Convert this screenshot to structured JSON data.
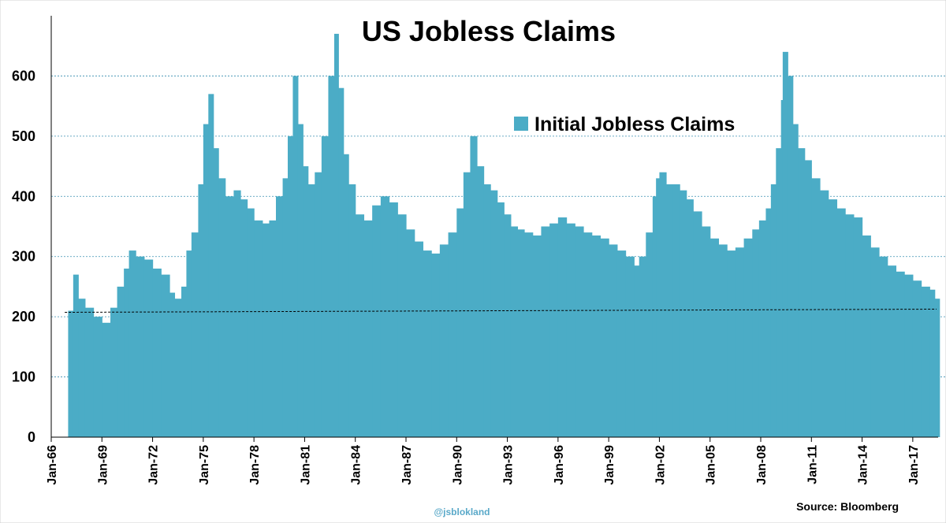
{
  "chart_data": {
    "type": "bar",
    "title": "US Jobless Claims",
    "legend": {
      "label": "Initial Jobless Claims",
      "position": "top-center"
    },
    "color": "#4bacc6",
    "reference_line_value": 210,
    "ylim": [
      0,
      700
    ],
    "yticks": [
      0,
      100,
      200,
      300,
      400,
      500,
      600
    ],
    "xlim": [
      1966.0,
      2018.5
    ],
    "xtick_labels": [
      "Jan-66",
      "Jan-69",
      "Jan-72",
      "Jan-75",
      "Jan-78",
      "Jan-81",
      "Jan-84",
      "Jan-87",
      "Jan-90",
      "Jan-93",
      "Jan-96",
      "Jan-99",
      "Jan-02",
      "Jan-05",
      "Jan-08",
      "Jan-11",
      "Jan-14",
      "Jan-17"
    ],
    "xtick_years": [
      1966,
      1969,
      1972,
      1975,
      1978,
      1981,
      1984,
      1987,
      1990,
      1993,
      1996,
      1999,
      2002,
      2005,
      2008,
      2011,
      2014,
      2017
    ],
    "grid": "horizontal-dashed",
    "source": "Source: Bloomberg",
    "credit": "@jsblokland",
    "series": [
      {
        "x": [
          1967.0,
          1967.3,
          1967.6,
          1968.0,
          1968.5,
          1969.0,
          1969.5,
          1969.9,
          1970.3,
          1970.6,
          1971.0,
          1971.5,
          1972.0,
          1972.5,
          1973.0,
          1973.3,
          1973.7,
          1974.0,
          1974.3,
          1974.7,
          1975.0,
          1975.3,
          1975.6,
          1975.9,
          1976.3,
          1976.8,
          1977.2,
          1977.6,
          1978.0,
          1978.5,
          1978.9,
          1979.3,
          1979.7,
          1980.0,
          1980.3,
          1980.6,
          1980.9,
          1981.2,
          1981.6,
          1982.0,
          1982.4,
          1982.75,
          1983.0,
          1983.3,
          1983.6,
          1984.0,
          1984.5,
          1985.0,
          1985.5,
          1986.0,
          1986.5,
          1987.0,
          1987.5,
          1988.0,
          1988.5,
          1989.0,
          1989.5,
          1990.0,
          1990.4,
          1990.8,
          1991.2,
          1991.6,
          1992.0,
          1992.4,
          1992.8,
          1993.2,
          1993.6,
          1994.0,
          1994.5,
          1995.0,
          1995.5,
          1996.0,
          1996.5,
          1997.0,
          1997.5,
          1998.0,
          1998.5,
          1999.0,
          1999.5,
          2000.0,
          2000.5,
          2000.8,
          2001.2,
          2001.6,
          2001.8,
          2002.0,
          2002.4,
          2002.8,
          2003.2,
          2003.6,
          2004.0,
          2004.5,
          2005.0,
          2005.5,
          2006.0,
          2006.5,
          2007.0,
          2007.5,
          2007.9,
          2008.3,
          2008.6,
          2008.9,
          2009.2,
          2009.3,
          2009.6,
          2009.9,
          2010.2,
          2010.6,
          2011.0,
          2011.5,
          2012.0,
          2012.5,
          2013.0,
          2013.5,
          2014.0,
          2014.5,
          2015.0,
          2015.5,
          2016.0,
          2016.5,
          2017.0,
          2017.5,
          2018.0,
          2018.3
        ],
        "values": [
          210,
          270,
          230,
          215,
          200,
          190,
          215,
          250,
          280,
          310,
          300,
          295,
          280,
          270,
          240,
          230,
          250,
          310,
          340,
          420,
          520,
          570,
          480,
          430,
          400,
          410,
          395,
          380,
          360,
          355,
          360,
          400,
          430,
          500,
          600,
          520,
          450,
          420,
          440,
          500,
          600,
          670,
          580,
          470,
          420,
          370,
          360,
          385,
          400,
          390,
          370,
          345,
          325,
          310,
          305,
          320,
          340,
          380,
          440,
          500,
          450,
          420,
          410,
          390,
          370,
          350,
          345,
          340,
          335,
          350,
          355,
          365,
          355,
          350,
          340,
          335,
          330,
          320,
          310,
          300,
          285,
          300,
          340,
          400,
          430,
          440,
          420,
          420,
          410,
          395,
          375,
          350,
          330,
          320,
          310,
          315,
          330,
          345,
          360,
          380,
          420,
          480,
          560,
          640,
          600,
          520,
          480,
          460,
          430,
          410,
          395,
          380,
          370,
          365,
          335,
          315,
          300,
          285,
          275,
          270,
          260,
          250,
          245,
          230
        ]
      }
    ]
  }
}
